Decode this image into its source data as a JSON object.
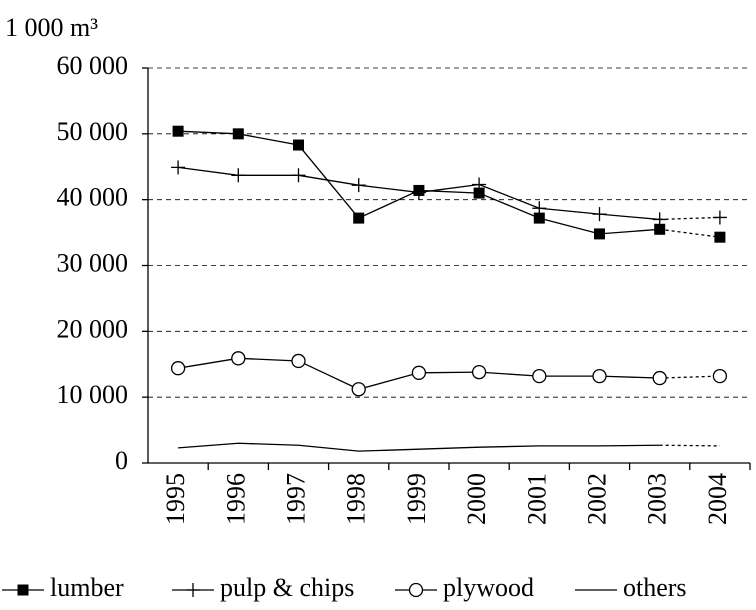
{
  "chart_data": {
    "type": "line",
    "y_axis_label": "1 000 m³",
    "categories": [
      "1995",
      "1996",
      "1997",
      "1998",
      "1999",
      "2000",
      "2001",
      "2002",
      "2003",
      "2004"
    ],
    "series": [
      {
        "name": "lumber",
        "color": "#000000",
        "marker": "square",
        "values": [
          50400,
          50000,
          48300,
          37200,
          41400,
          41000,
          37200,
          34800,
          35500,
          34300
        ]
      },
      {
        "name": "pulp & chips",
        "color": "#000000",
        "marker": "plus",
        "values": [
          44900,
          43700,
          43700,
          42200,
          41100,
          42300,
          38700,
          37800,
          37000,
          37300
        ]
      },
      {
        "name": "plywood",
        "color": "#000000",
        "marker": "circle",
        "values": [
          14400,
          15900,
          15500,
          11200,
          13700,
          13800,
          13200,
          13200,
          12900,
          13200
        ]
      },
      {
        "name": "others",
        "color": "#000000",
        "marker": "none",
        "values": [
          2300,
          3000,
          2700,
          1800,
          2100,
          2400,
          2600,
          2600,
          2700,
          2600
        ]
      }
    ],
    "ylim": [
      0,
      60000
    ],
    "yticks": [
      0,
      {
        "value": 10000,
        "label": "10 000"
      },
      {
        "value": 20000,
        "label": "20 000"
      },
      {
        "value": 30000,
        "label": "30 000"
      },
      {
        "value": 40000,
        "label": "40 000"
      },
      {
        "value": 50000,
        "label": "50 000"
      },
      {
        "value": 60000,
        "label": "60 000"
      }
    ],
    "grid": true,
    "dotted_last_segment": true,
    "legend": "bottom"
  }
}
